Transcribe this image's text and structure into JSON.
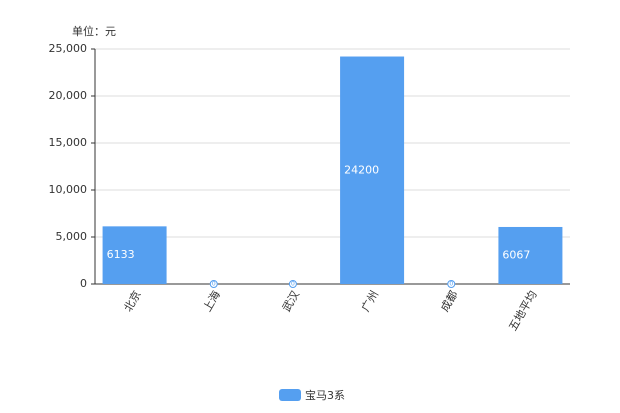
{
  "chart_data": {
    "type": "bar",
    "unit_label": "单位：元",
    "categories": [
      "北京",
      "上海",
      "武汉",
      "广州",
      "成都",
      "五地平均"
    ],
    "series": [
      {
        "name": "宝马3系",
        "color": "#559ff0",
        "values": [
          6133,
          0,
          0,
          24200,
          0,
          6067
        ]
      }
    ],
    "ylim": [
      0,
      25000
    ],
    "yticks": [
      0,
      {
        "value": 5000,
        "label": "5,000"
      },
      {
        "value": 10000,
        "label": "10,000"
      },
      {
        "value": 15000,
        "label": "15,000"
      },
      {
        "value": 20000,
        "label": "20,000"
      },
      {
        "value": 25000,
        "label": "25,000"
      }
    ],
    "grid": true
  }
}
